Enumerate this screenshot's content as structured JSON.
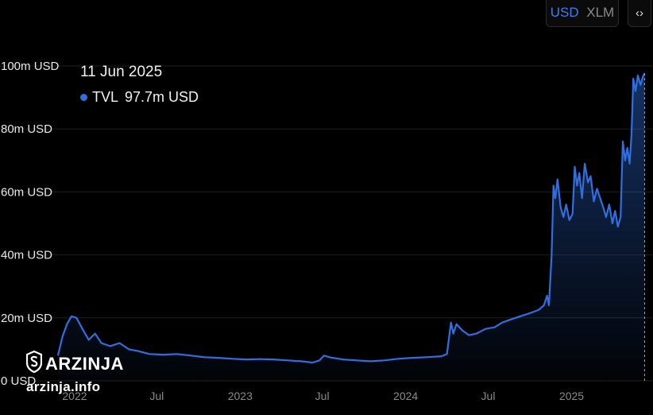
{
  "currency_toggle": {
    "options": [
      "USD",
      "XLM"
    ],
    "selected": "USD"
  },
  "expand_label": "‹›",
  "tooltip": {
    "date": "11 Jun 2025",
    "series_name": "TVL",
    "value_text": "97.7m USD"
  },
  "watermark": {
    "brand": "ARZINJA",
    "site": "arzinja.info"
  },
  "colors": {
    "line": "#2f6fe0",
    "background": "#000000"
  },
  "chart_data": {
    "type": "area",
    "title": "",
    "xlabel": "",
    "ylabel": "",
    "ylim": [
      0,
      100
    ],
    "y_ticks": [
      {
        "value": 0,
        "label": "0 USD"
      },
      {
        "value": 20,
        "label": "20m USD"
      },
      {
        "value": 40,
        "label": "40m USD"
      },
      {
        "value": 60,
        "label": "60m USD"
      },
      {
        "value": 80,
        "label": "80m USD"
      },
      {
        "value": 100,
        "label": "100m USD"
      }
    ],
    "x_ticks": [
      {
        "date": "2022-01-01",
        "label": "2022"
      },
      {
        "date": "2022-07-01",
        "label": "Jul"
      },
      {
        "date": "2023-01-01",
        "label": "2023"
      },
      {
        "date": "2023-07-01",
        "label": "Jul"
      },
      {
        "date": "2024-01-01",
        "label": "2024"
      },
      {
        "date": "2024-07-01",
        "label": "Jul"
      },
      {
        "date": "2025-01-01",
        "label": "2025"
      }
    ],
    "grid": true,
    "series": [
      {
        "name": "TVL",
        "unit": "m USD",
        "points": [
          [
            "2021-11-25",
            8
          ],
          [
            "2021-12-05",
            14
          ],
          [
            "2021-12-15",
            18
          ],
          [
            "2021-12-25",
            20.5
          ],
          [
            "2022-01-05",
            20
          ],
          [
            "2022-01-20",
            16
          ],
          [
            "2022-02-01",
            13
          ],
          [
            "2022-02-15",
            15
          ],
          [
            "2022-03-01",
            12
          ],
          [
            "2022-03-20",
            11
          ],
          [
            "2022-04-10",
            12
          ],
          [
            "2022-05-01",
            10
          ],
          [
            "2022-05-20",
            9.5
          ],
          [
            "2022-06-15",
            8.5
          ],
          [
            "2022-07-15",
            8.3
          ],
          [
            "2022-08-15",
            8.5
          ],
          [
            "2022-09-15",
            8.0
          ],
          [
            "2022-10-15",
            7.5
          ],
          [
            "2022-11-15",
            7.3
          ],
          [
            "2022-12-15",
            7.0
          ],
          [
            "2023-01-15",
            6.8
          ],
          [
            "2023-02-15",
            6.9
          ],
          [
            "2023-03-15",
            6.8
          ],
          [
            "2023-04-15",
            6.5
          ],
          [
            "2023-05-15",
            6.2
          ],
          [
            "2023-06-10",
            5.8
          ],
          [
            "2023-06-25",
            6.5
          ],
          [
            "2023-07-05",
            8.0
          ],
          [
            "2023-07-20",
            7.4
          ],
          [
            "2023-08-15",
            6.8
          ],
          [
            "2023-09-15",
            6.5
          ],
          [
            "2023-10-15",
            6.2
          ],
          [
            "2023-11-15",
            6.5
          ],
          [
            "2023-12-15",
            7.0
          ],
          [
            "2024-01-15",
            7.3
          ],
          [
            "2024-02-15",
            7.5
          ],
          [
            "2024-03-20",
            7.8
          ],
          [
            "2024-04-01",
            8.5
          ],
          [
            "2024-04-10",
            18.5
          ],
          [
            "2024-04-15",
            15.0
          ],
          [
            "2024-04-22",
            18.0
          ],
          [
            "2024-05-05",
            16.0
          ],
          [
            "2024-05-20",
            14.5
          ],
          [
            "2024-06-05",
            15.0
          ],
          [
            "2024-06-25",
            16.5
          ],
          [
            "2024-07-15",
            17.0
          ],
          [
            "2024-08-01",
            18.5
          ],
          [
            "2024-08-20",
            19.5
          ],
          [
            "2024-09-10",
            20.5
          ],
          [
            "2024-10-01",
            21.5
          ],
          [
            "2024-10-20",
            22.5
          ],
          [
            "2024-11-01",
            24.0
          ],
          [
            "2024-11-08",
            27.0
          ],
          [
            "2024-11-12",
            24.0
          ],
          [
            "2024-11-18",
            40.0
          ],
          [
            "2024-11-22",
            62.0
          ],
          [
            "2024-11-26",
            58.0
          ],
          [
            "2024-12-01",
            64.0
          ],
          [
            "2024-12-08",
            55.0
          ],
          [
            "2024-12-14",
            52.0
          ],
          [
            "2024-12-20",
            56.0
          ],
          [
            "2024-12-27",
            51.0
          ],
          [
            "2025-01-03",
            53.0
          ],
          [
            "2025-01-08",
            68.0
          ],
          [
            "2025-01-13",
            62.0
          ],
          [
            "2025-01-18",
            66.0
          ],
          [
            "2025-01-24",
            58.0
          ],
          [
            "2025-01-30",
            69.0
          ],
          [
            "2025-02-06",
            63.0
          ],
          [
            "2025-02-12",
            65.0
          ],
          [
            "2025-02-19",
            57.0
          ],
          [
            "2025-02-26",
            61.0
          ],
          [
            "2025-03-05",
            58.0
          ],
          [
            "2025-03-12",
            55.0
          ],
          [
            "2025-03-18",
            52.0
          ],
          [
            "2025-03-25",
            56.0
          ],
          [
            "2025-04-01",
            50.0
          ],
          [
            "2025-04-07",
            54.0
          ],
          [
            "2025-04-13",
            49.0
          ],
          [
            "2025-04-19",
            52.0
          ],
          [
            "2025-04-24",
            76.0
          ],
          [
            "2025-04-29",
            70.0
          ],
          [
            "2025-05-04",
            74.0
          ],
          [
            "2025-05-09",
            69.0
          ],
          [
            "2025-05-13",
            78.0
          ],
          [
            "2025-05-17",
            96.0
          ],
          [
            "2025-05-22",
            92.0
          ],
          [
            "2025-05-27",
            97.0
          ],
          [
            "2025-06-02",
            94.0
          ],
          [
            "2025-06-07",
            96.5
          ],
          [
            "2025-06-11",
            97.7
          ]
        ]
      }
    ],
    "hover": {
      "date": "2025-06-11",
      "value": 97.7
    }
  }
}
